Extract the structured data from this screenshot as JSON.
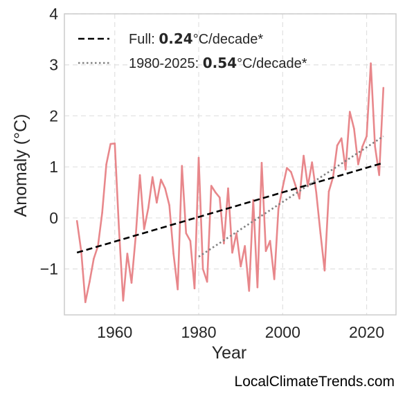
{
  "chart_data": {
    "type": "line",
    "title": "",
    "xlabel": "Year",
    "ylabel": "Anomaly (°C)",
    "xlim": [
      1948,
      2027
    ],
    "ylim": [
      -1.9,
      4
    ],
    "grid": true,
    "legend_position": "top-left",
    "x_ticks": [
      1960,
      1980,
      2000,
      2020
    ],
    "x_tick_labels": [
      "1960",
      "1980",
      "2000",
      "2020"
    ],
    "y_ticks": [
      -1,
      0,
      1,
      2,
      3,
      4
    ],
    "y_tick_labels": [
      "−1",
      "0",
      "1",
      "2",
      "3",
      "4"
    ],
    "colors": {
      "series": "#e8878b",
      "full_trend": "#000000",
      "recent_trend": "#808080",
      "grid": "#e0e0e0",
      "frame": "#cccccc"
    },
    "series": [
      {
        "x": [
          1951,
          1952,
          1953,
          1954,
          1955,
          1956,
          1957,
          1958,
          1959,
          1960,
          1961,
          1962,
          1963,
          1964,
          1965,
          1966,
          1967,
          1968,
          1969,
          1970,
          1971,
          1972,
          1973,
          1974,
          1975,
          1976,
          1977,
          1978,
          1979,
          1980,
          1981,
          1982,
          1983,
          1984,
          1985,
          1986,
          1987,
          1988,
          1989,
          1990,
          1991,
          1992,
          1993,
          1994,
          1995,
          1996,
          1997,
          1998,
          1999,
          2000,
          2001,
          2002,
          2003,
          2004,
          2005,
          2006,
          2007,
          2008,
          2009,
          2010,
          2011,
          2012,
          2013,
          2014,
          2015,
          2016,
          2017,
          2018,
          2019,
          2020,
          2021,
          2022,
          2023,
          2024
        ],
        "values": [
          -0.06,
          -0.65,
          -1.65,
          -1.25,
          -0.8,
          -0.55,
          0.1,
          1.05,
          1.45,
          1.46,
          -0.2,
          -1.62,
          -0.7,
          -1.27,
          -0.35,
          0.84,
          -0.22,
          0.2,
          0.8,
          0.3,
          0.75,
          0.58,
          0.25,
          -0.7,
          -1.4,
          1.02,
          -0.3,
          -0.45,
          -1.38,
          1.18,
          -1.0,
          -1.25,
          0.63,
          0.5,
          0.4,
          -0.5,
          0.58,
          -0.68,
          -0.3,
          -0.95,
          -0.55,
          -1.43,
          0.35,
          -1.36,
          1.08,
          -0.65,
          -0.45,
          -1.2,
          0.18,
          0.6,
          0.98,
          0.9,
          0.65,
          0.38,
          1.22,
          0.62,
          1.09,
          0.5,
          -0.3,
          -1.03,
          0.52,
          0.8,
          1.42,
          1.56,
          0.95,
          2.08,
          1.75,
          1.05,
          1.4,
          1.6,
          3.03,
          1.4,
          0.84,
          2.55
        ]
      }
    ],
    "trend_lines": [
      {
        "x": [
          1951,
          2024
        ],
        "y": [
          -0.68,
          1.08
        ]
      },
      {
        "x": [
          1980,
          2024
        ],
        "y": [
          -0.76,
          1.6
        ]
      }
    ],
    "legend": [
      {
        "prefix": "Full: ",
        "bold": "0.24",
        "suffix": "°C/decade*"
      },
      {
        "prefix": "1980-2025: ",
        "bold": "0.54",
        "suffix": "°C/decade*"
      }
    ]
  },
  "watermark": "LocalClimateTrends.com"
}
